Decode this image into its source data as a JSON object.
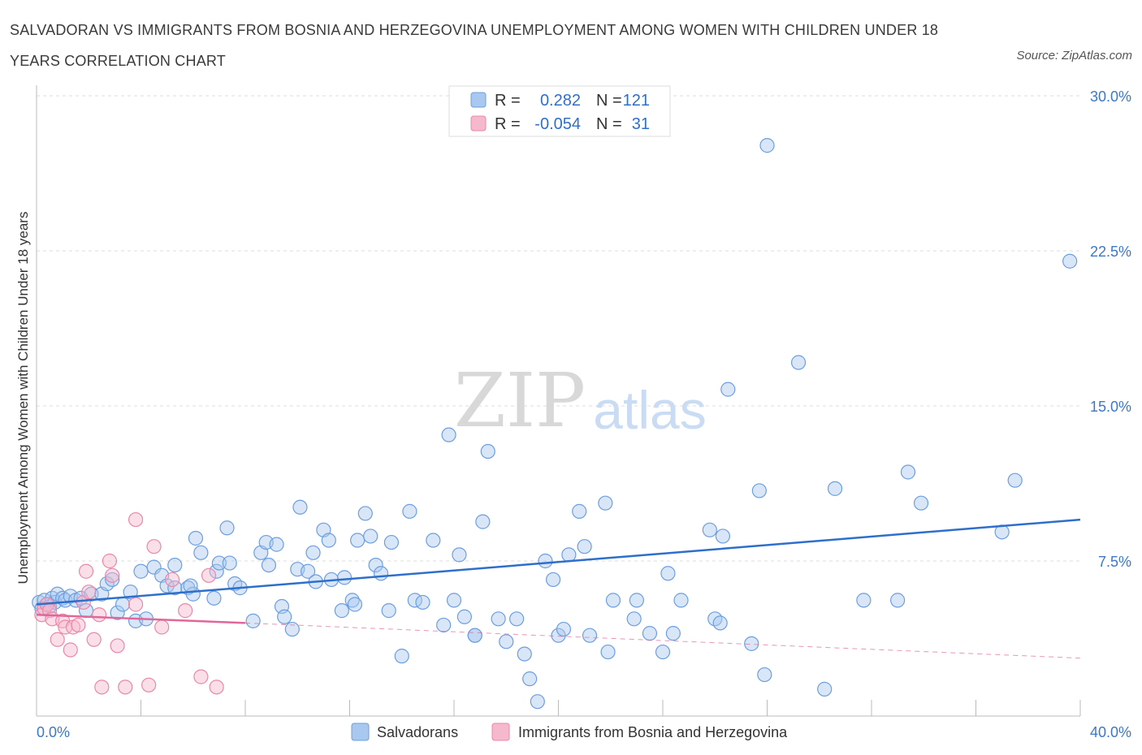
{
  "title": "SALVADORAN VS IMMIGRANTS FROM BOSNIA AND HERZEGOVINA UNEMPLOYMENT AMONG WOMEN WITH CHILDREN UNDER 18 YEARS CORRELATION CHART",
  "source": "Source: ZipAtlas.com",
  "watermark": {
    "zip": "ZIP",
    "atlas": "atlas"
  },
  "colors": {
    "blue_fill": "#a8c8f0",
    "blue_stroke": "#6c9fe0",
    "blue_line": "#2f6fcc",
    "pink_fill": "#f6b8cc",
    "pink_stroke": "#e889a8",
    "pink_line": "#e0679a"
  },
  "legend": {
    "rows": [
      {
        "r_label": "R =",
        "r_value": "0.282",
        "n_label": "N =",
        "n_value": "121"
      },
      {
        "r_label": "R =",
        "r_value": "-0.054",
        "n_label": "N =",
        "n_value": "31"
      }
    ]
  },
  "bottom_legend": [
    "Salvadorans",
    "Immigrants from Bosnia and Herzegovina"
  ],
  "chart_data": {
    "type": "scatter",
    "xlabel": "",
    "ylabel": "Unemployment Among Women with Children Under 18 years",
    "xlim": [
      0,
      40
    ],
    "ylim": [
      0,
      30
    ],
    "x_tick_labels": [
      "0.0%",
      "40.0%"
    ],
    "y_ticks": [
      7.5,
      15.0,
      22.5,
      30.0
    ],
    "y_tick_labels": [
      "7.5%",
      "15.0%",
      "22.5%",
      "30.0%"
    ],
    "grid": true,
    "legend_position": "top-center",
    "series": [
      {
        "name": "Salvadorans",
        "trend": {
          "x": [
            0,
            40
          ],
          "y": [
            5.4,
            9.5
          ]
        },
        "points": [
          [
            0.1,
            5.5
          ],
          [
            0.2,
            5.2
          ],
          [
            0.3,
            5.6
          ],
          [
            0.4,
            5.4
          ],
          [
            0.5,
            5.3
          ],
          [
            0.6,
            5.7
          ],
          [
            0.7,
            5.5
          ],
          [
            0.8,
            5.9
          ],
          [
            1.0,
            5.7
          ],
          [
            1.1,
            5.6
          ],
          [
            1.3,
            5.8
          ],
          [
            1.5,
            5.6
          ],
          [
            1.7,
            5.7
          ],
          [
            1.9,
            5.1
          ],
          [
            2.1,
            5.9
          ],
          [
            2.5,
            5.9
          ],
          [
            2.7,
            6.4
          ],
          [
            2.9,
            6.6
          ],
          [
            3.1,
            5.0
          ],
          [
            3.3,
            5.4
          ],
          [
            3.6,
            6.0
          ],
          [
            3.8,
            4.6
          ],
          [
            4.2,
            4.7
          ],
          [
            4.5,
            7.2
          ],
          [
            4.0,
            7.0
          ],
          [
            4.8,
            6.8
          ],
          [
            5.0,
            6.3
          ],
          [
            5.3,
            6.2
          ],
          [
            5.3,
            7.3
          ],
          [
            5.8,
            6.2
          ],
          [
            6.0,
            5.9
          ],
          [
            5.9,
            6.3
          ],
          [
            6.1,
            8.6
          ],
          [
            6.3,
            7.9
          ],
          [
            6.8,
            5.7
          ],
          [
            6.9,
            7.0
          ],
          [
            7.0,
            7.4
          ],
          [
            7.4,
            7.4
          ],
          [
            7.3,
            9.1
          ],
          [
            7.6,
            6.4
          ],
          [
            7.8,
            6.2
          ],
          [
            8.3,
            4.6
          ],
          [
            8.6,
            7.9
          ],
          [
            8.8,
            8.4
          ],
          [
            8.9,
            7.3
          ],
          [
            9.2,
            8.3
          ],
          [
            9.4,
            5.3
          ],
          [
            9.5,
            4.8
          ],
          [
            9.8,
            4.2
          ],
          [
            10.1,
            10.1
          ],
          [
            10.0,
            7.1
          ],
          [
            10.4,
            7.0
          ],
          [
            10.6,
            7.9
          ],
          [
            10.7,
            6.5
          ],
          [
            11.0,
            9.0
          ],
          [
            11.2,
            8.5
          ],
          [
            11.3,
            6.6
          ],
          [
            11.7,
            5.1
          ],
          [
            11.8,
            6.7
          ],
          [
            12.1,
            5.6
          ],
          [
            12.2,
            5.4
          ],
          [
            12.3,
            8.5
          ],
          [
            12.6,
            9.8
          ],
          [
            12.8,
            8.7
          ],
          [
            13.0,
            7.3
          ],
          [
            13.2,
            6.9
          ],
          [
            13.5,
            5.1
          ],
          [
            13.6,
            8.4
          ],
          [
            14.0,
            2.9
          ],
          [
            14.3,
            9.9
          ],
          [
            14.5,
            5.6
          ],
          [
            14.8,
            5.5
          ],
          [
            15.2,
            8.5
          ],
          [
            15.6,
            4.4
          ],
          [
            15.8,
            13.6
          ],
          [
            16.0,
            5.6
          ],
          [
            16.2,
            7.8
          ],
          [
            16.4,
            4.8
          ],
          [
            16.8,
            3.9
          ],
          [
            16.8,
            3.9
          ],
          [
            17.1,
            9.4
          ],
          [
            17.3,
            12.8
          ],
          [
            17.7,
            4.7
          ],
          [
            18.0,
            3.6
          ],
          [
            18.4,
            4.7
          ],
          [
            18.7,
            3.0
          ],
          [
            18.9,
            1.8
          ],
          [
            19.2,
            0.7
          ],
          [
            19.5,
            7.5
          ],
          [
            19.8,
            6.6
          ],
          [
            20.0,
            3.9
          ],
          [
            20.2,
            4.2
          ],
          [
            20.4,
            7.8
          ],
          [
            20.8,
            9.9
          ],
          [
            21.0,
            8.2
          ],
          [
            21.2,
            3.9
          ],
          [
            21.8,
            10.3
          ],
          [
            21.9,
            3.1
          ],
          [
            22.1,
            5.6
          ],
          [
            22.9,
            4.7
          ],
          [
            23.0,
            5.6
          ],
          [
            23.5,
            4.0
          ],
          [
            24.0,
            3.1
          ],
          [
            24.2,
            6.9
          ],
          [
            24.4,
            4.0
          ],
          [
            24.7,
            5.6
          ],
          [
            25.8,
            9.0
          ],
          [
            26.0,
            4.7
          ],
          [
            26.2,
            4.5
          ],
          [
            26.3,
            8.7
          ],
          [
            26.5,
            15.8
          ],
          [
            27.4,
            3.5
          ],
          [
            27.7,
            10.9
          ],
          [
            27.9,
            2.0
          ],
          [
            28.0,
            27.6
          ],
          [
            29.2,
            17.1
          ],
          [
            30.2,
            1.3
          ],
          [
            30.6,
            11.0
          ],
          [
            31.7,
            5.6
          ],
          [
            33.0,
            5.6
          ],
          [
            33.4,
            11.8
          ],
          [
            33.9,
            10.3
          ],
          [
            37.0,
            8.9
          ],
          [
            37.5,
            11.4
          ],
          [
            39.6,
            22.0
          ]
        ]
      },
      {
        "name": "Immigrants from Bosnia and Herzegovina",
        "trend": {
          "x": [
            0,
            8
          ],
          "y": [
            4.9,
            4.5
          ]
        },
        "trend_extension": {
          "x": [
            8,
            40
          ],
          "y": [
            4.5,
            2.8
          ]
        },
        "points": [
          [
            0.2,
            4.9
          ],
          [
            0.3,
            5.2
          ],
          [
            0.4,
            5.4
          ],
          [
            0.5,
            5.1
          ],
          [
            0.6,
            4.7
          ],
          [
            0.8,
            3.7
          ],
          [
            1.0,
            4.6
          ],
          [
            1.1,
            4.3
          ],
          [
            1.3,
            3.2
          ],
          [
            1.4,
            4.3
          ],
          [
            1.6,
            4.4
          ],
          [
            1.8,
            5.5
          ],
          [
            1.9,
            7.0
          ],
          [
            2.0,
            6.0
          ],
          [
            2.2,
            3.7
          ],
          [
            2.4,
            4.9
          ],
          [
            2.5,
            1.4
          ],
          [
            2.8,
            7.5
          ],
          [
            2.9,
            6.8
          ],
          [
            3.1,
            3.4
          ],
          [
            3.4,
            1.4
          ],
          [
            3.8,
            5.4
          ],
          [
            3.8,
            9.5
          ],
          [
            4.3,
            1.5
          ],
          [
            4.5,
            8.2
          ],
          [
            4.8,
            4.3
          ],
          [
            5.2,
            6.6
          ],
          [
            5.7,
            5.1
          ],
          [
            6.3,
            1.9
          ],
          [
            6.6,
            6.8
          ],
          [
            6.9,
            1.4
          ]
        ]
      }
    ]
  }
}
